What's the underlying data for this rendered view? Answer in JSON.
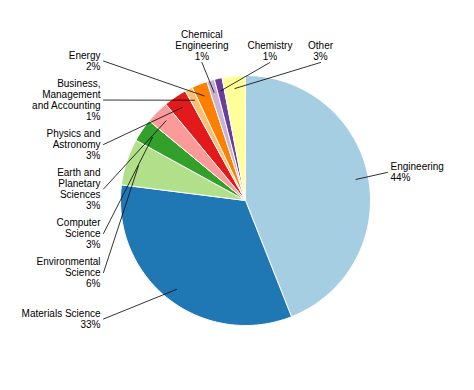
{
  "chart_data": {
    "type": "pie",
    "categories": [
      "Engineering",
      "Materials Science",
      "Environmental\nScience",
      "Computer\nScience",
      "Earth and\nPlanetary\nSciences",
      "Physics and\nAstronomy",
      "Business,\nManagement\nand Accounting",
      "Energy",
      "Chemical\nEngineering",
      "Chemistry",
      "Other"
    ],
    "values": [
      44,
      33,
      6,
      3,
      3,
      3,
      1,
      2,
      1,
      1,
      3
    ],
    "value_labels": [
      "44%",
      "33%",
      "6%",
      "3%",
      "3%",
      "3%",
      "1%",
      "2%",
      "1%",
      "1%",
      "3%"
    ],
    "data_labels": true
  }
}
